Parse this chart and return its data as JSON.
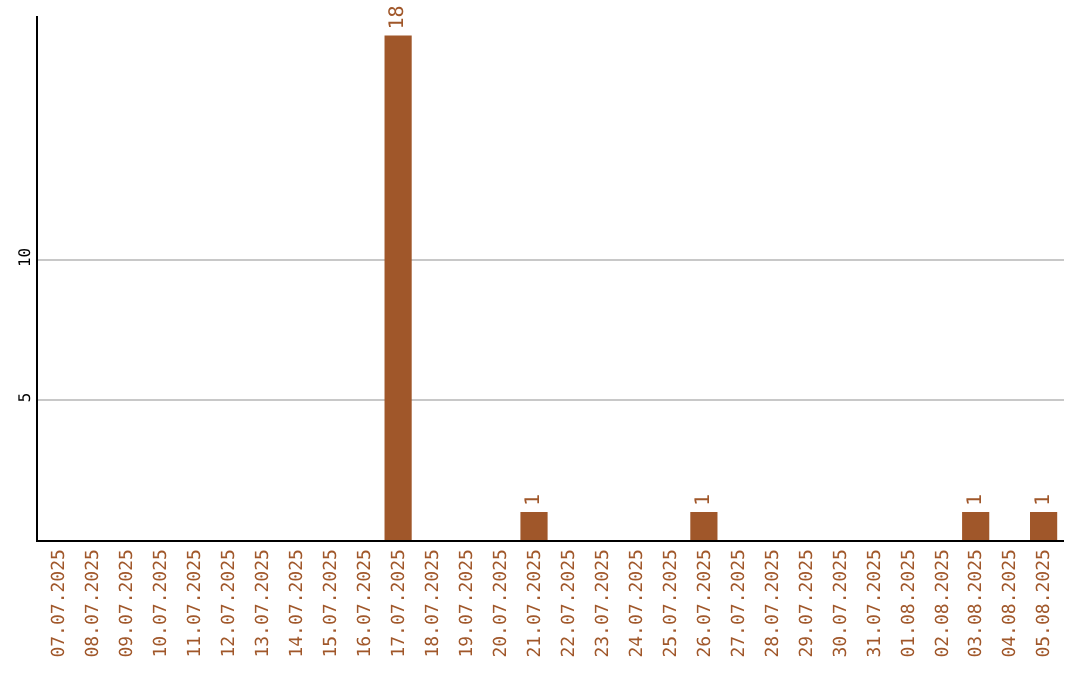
{
  "chart_data": {
    "type": "bar",
    "categories": [
      "07.07.2025",
      "08.07.2025",
      "09.07.2025",
      "10.07.2025",
      "11.07.2025",
      "12.07.2025",
      "13.07.2025",
      "14.07.2025",
      "15.07.2025",
      "16.07.2025",
      "17.07.2025",
      "18.07.2025",
      "19.07.2025",
      "20.07.2025",
      "21.07.2025",
      "22.07.2025",
      "23.07.2025",
      "24.07.2025",
      "25.07.2025",
      "26.07.2025",
      "27.07.2025",
      "28.07.2025",
      "29.07.2025",
      "30.07.2025",
      "31.07.2025",
      "01.08.2025",
      "02.08.2025",
      "03.08.2025",
      "04.08.2025",
      "05.08.2025"
    ],
    "series": [
      {
        "color": "#a0572a",
        "values": [
          0,
          0,
          0,
          0,
          0,
          0,
          0,
          0,
          0,
          0,
          18,
          0,
          0,
          0,
          1,
          0,
          0,
          0,
          0,
          1,
          0,
          0,
          0,
          0,
          0,
          0,
          0,
          1,
          0,
          1
        ],
        "value_labels": [
          null,
          null,
          null,
          null,
          null,
          null,
          null,
          null,
          null,
          null,
          "18",
          null,
          null,
          null,
          "1",
          null,
          null,
          null,
          null,
          "1",
          null,
          null,
          null,
          null,
          null,
          null,
          null,
          "1",
          null,
          "1"
        ]
      }
    ],
    "ylim": [
      0,
      18.7
    ],
    "yticks": [
      5,
      10
    ],
    "grid": "y"
  }
}
